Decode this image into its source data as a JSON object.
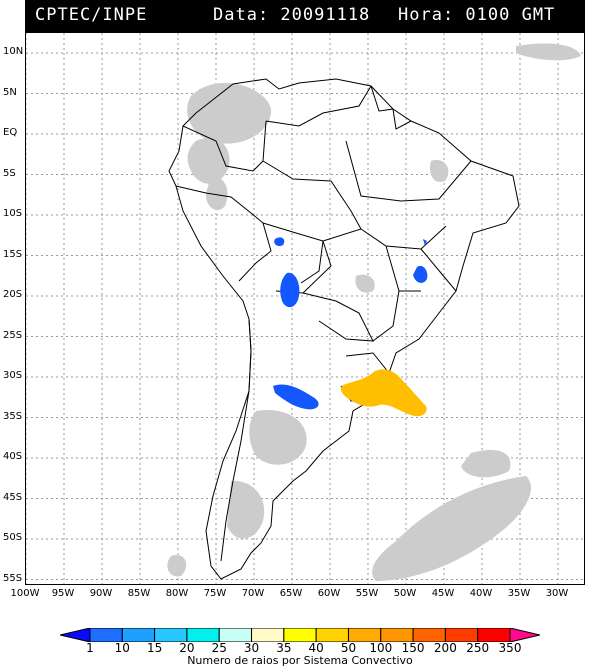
{
  "header": {
    "org": "CPTEC/INPE",
    "date_text": "Data: 20091118",
    "time_text": "Hora: 0100 GMT"
  },
  "map": {
    "lat_labels": [
      "10N",
      "5N",
      "EQ",
      "5S",
      "10S",
      "15S",
      "20S",
      "25S",
      "30S",
      "35S",
      "40S",
      "45S",
      "50S",
      "55S"
    ],
    "lon_labels": [
      "100W",
      "95W",
      "90W",
      "85W",
      "80W",
      "75W",
      "70W",
      "65W",
      "60W",
      "55W",
      "50W",
      "45W",
      "40W",
      "35W",
      "30W"
    ],
    "cloud_color": "#cccccc",
    "border_color": "#000000",
    "grid_color": "#9a9a9a",
    "systems": [
      {
        "name": "blue-cell-bolivia",
        "color": "#1457ff"
      },
      {
        "name": "blue-cell-chaco",
        "color": "#1457ff"
      },
      {
        "name": "blue-cell-minas",
        "color": "#1457ff"
      },
      {
        "name": "blue-cell-argentina",
        "color": "#1457ff"
      },
      {
        "name": "orange-system-uruguay",
        "color": "#ffbe00"
      }
    ]
  },
  "colorbar": {
    "labels": [
      "1",
      "10",
      "15",
      "20",
      "25",
      "30",
      "35",
      "40",
      "50",
      "100",
      "150",
      "200",
      "250",
      "350"
    ],
    "colors": [
      "#0a0aff",
      "#1e6eff",
      "#1ea0ff",
      "#28c8ff",
      "#00f0f0",
      "#c8fff5",
      "#fffac8",
      "#ffff00",
      "#ffd200",
      "#ffaa00",
      "#ff9600",
      "#ff6400",
      "#ff3c00",
      "#ff0000",
      "#ff0a8c"
    ],
    "caption": "Numero de raios por Sistema Convectivo"
  }
}
